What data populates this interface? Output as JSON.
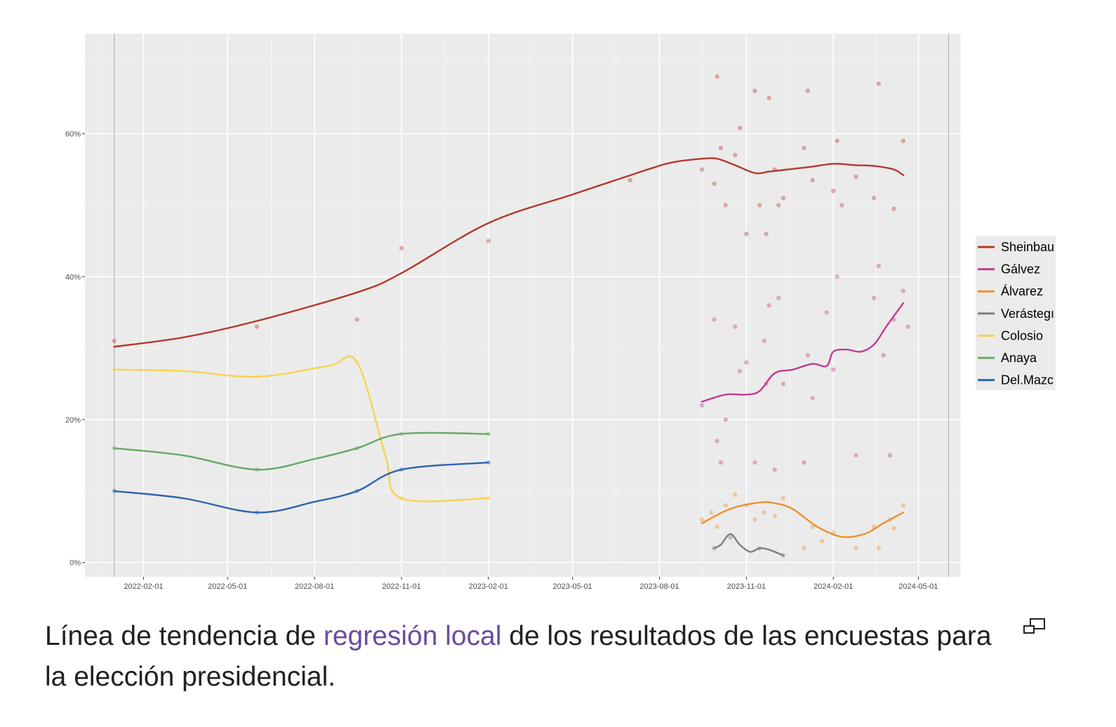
{
  "chart_data": {
    "type": "line",
    "title": "",
    "xlabel": "",
    "ylabel": "",
    "xlim": [
      "2021-12-01",
      "2024-06-15"
    ],
    "ylim": [
      -2,
      74
    ],
    "grid": true,
    "legend_position": "right",
    "x_ticks": [
      "2022-02-01",
      "2022-05-01",
      "2022-08-01",
      "2022-11-01",
      "2023-02-01",
      "2023-05-01",
      "2023-08-01",
      "2023-11-01",
      "2024-02-01",
      "2024-05-01"
    ],
    "y_ticks": [
      0,
      20,
      40,
      60
    ],
    "y_tick_labels": [
      "0%",
      "20%",
      "40%",
      "60%"
    ],
    "vlines": [
      "2022-01-01",
      "2024-06-02"
    ],
    "series": [
      {
        "name": "Sheinbaum",
        "legend_label": "Sheinbau",
        "color": "#b5382c",
        "x": [
          "2022-01-01",
          "2022-03-15",
          "2022-06-01",
          "2022-09-15",
          "2022-11-01",
          "2023-02-01",
          "2023-05-01",
          "2023-07-15",
          "2023-08-15",
          "2023-09-15",
          "2023-10-01",
          "2023-10-20",
          "2023-11-10",
          "2023-11-25",
          "2023-12-15",
          "2024-01-10",
          "2024-02-01",
          "2024-02-25",
          "2024-03-15",
          "2024-04-05",
          "2024-04-15"
        ],
        "y": [
          30.2,
          31.5,
          33.8,
          37.8,
          40.5,
          47.5,
          51.5,
          54.8,
          56,
          56.5,
          56.5,
          55.6,
          54.5,
          54.7,
          55,
          55.4,
          55.8,
          55.6,
          55.5,
          55,
          54.2
        ],
        "points": {
          "x": [
            "2022-01-01",
            "2022-06-01",
            "2022-09-15",
            "2022-11-01",
            "2023-02-01",
            "2023-07-01",
            "2023-09-15",
            "2023-09-28",
            "2023-10-01",
            "2023-10-05",
            "2023-10-10",
            "2023-10-20",
            "2023-10-25",
            "2023-11-01",
            "2023-11-10",
            "2023-11-15",
            "2023-11-22",
            "2023-11-25",
            "2023-12-01",
            "2023-12-05",
            "2023-12-10",
            "2024-01-01",
            "2024-01-05",
            "2024-01-10",
            "2024-02-01",
            "2024-02-05",
            "2024-02-10",
            "2024-02-25",
            "2024-03-15",
            "2024-03-20",
            "2024-04-05",
            "2024-04-15"
          ],
          "y": [
            31,
            33,
            34,
            44,
            45,
            53.5,
            55,
            53,
            68,
            58,
            50,
            57,
            60.8,
            46,
            66,
            50,
            46,
            65,
            55,
            50,
            51,
            58,
            66,
            53.5,
            52,
            59,
            50,
            54,
            51,
            67,
            49.5,
            59
          ]
        }
      },
      {
        "name": "Gálvez",
        "legend_label": "Gálvez",
        "color": "#c33b8f",
        "x": [
          "2023-09-15",
          "2023-10-10",
          "2023-11-01",
          "2023-11-15",
          "2023-12-01",
          "2023-12-20",
          "2024-01-10",
          "2024-01-25",
          "2024-02-01",
          "2024-02-15",
          "2024-03-01",
          "2024-03-15",
          "2024-03-28",
          "2024-04-15"
        ],
        "y": [
          22.5,
          23.5,
          23.5,
          24,
          26.5,
          27,
          27.8,
          27.5,
          29.5,
          29.8,
          29.5,
          30.5,
          33,
          36.3
        ],
        "points": {
          "x": [
            "2023-09-15",
            "2023-09-28",
            "2023-10-01",
            "2023-10-05",
            "2023-10-10",
            "2023-10-20",
            "2023-10-25",
            "2023-11-01",
            "2023-11-10",
            "2023-11-20",
            "2023-11-22",
            "2023-11-25",
            "2023-12-01",
            "2023-12-05",
            "2023-12-10",
            "2024-01-01",
            "2024-01-05",
            "2024-01-10",
            "2024-01-25",
            "2024-02-01",
            "2024-02-05",
            "2024-02-25",
            "2024-03-15",
            "2024-03-20",
            "2024-03-25",
            "2024-04-01",
            "2024-04-05",
            "2024-04-15",
            "2024-04-20"
          ],
          "y": [
            22,
            34,
            17,
            14,
            20,
            33,
            26.8,
            28,
            14,
            31,
            25,
            36,
            13,
            37,
            25,
            14,
            29,
            23,
            35,
            27,
            40,
            15,
            37,
            41.5,
            29,
            15,
            34,
            38,
            33
          ]
        }
      },
      {
        "name": "Álvarez",
        "legend_label": "Álvarez",
        "color": "#ee8f2b",
        "x": [
          "2023-09-15",
          "2023-10-15",
          "2023-11-15",
          "2023-12-01",
          "2023-12-20",
          "2024-01-15",
          "2024-02-10",
          "2024-03-05",
          "2024-03-25",
          "2024-04-15"
        ],
        "y": [
          5.5,
          7.5,
          8.4,
          8.3,
          7.5,
          5,
          3.6,
          4,
          5.5,
          7
        ],
        "points": {
          "x": [
            "2023-09-15",
            "2023-09-25",
            "2023-10-01",
            "2023-10-10",
            "2023-10-20",
            "2023-11-01",
            "2023-11-10",
            "2023-11-20",
            "2023-12-01",
            "2023-12-10",
            "2024-01-01",
            "2024-01-10",
            "2024-01-20",
            "2024-02-01",
            "2024-02-25",
            "2024-03-15",
            "2024-03-20",
            "2024-04-01",
            "2024-04-05",
            "2024-04-15"
          ],
          "y": [
            6,
            7,
            5,
            8,
            9.5,
            8,
            6,
            7,
            6.5,
            9,
            2,
            5,
            3,
            4.2,
            2,
            5,
            2,
            6,
            4.8,
            8
          ]
        }
      },
      {
        "name": "Verástegui",
        "legend_label": "Verástegı",
        "color": "#7f7f7f",
        "x": [
          "2023-09-28",
          "2023-10-05",
          "2023-10-15",
          "2023-10-25",
          "2023-11-05",
          "2023-11-15",
          "2023-11-25",
          "2023-12-10"
        ],
        "y": [
          2,
          2.5,
          4,
          2.5,
          1.5,
          2,
          1.8,
          1
        ],
        "points": {
          "x": [
            "2023-09-28",
            "2023-10-15",
            "2023-11-15",
            "2023-12-10"
          ],
          "y": [
            2,
            3.5,
            2,
            1
          ]
        }
      },
      {
        "name": "Colosio",
        "legend_label": "Colosio",
        "color": "#f6d24d",
        "x": [
          "2022-01-01",
          "2022-03-15",
          "2022-06-01",
          "2022-08-15",
          "2022-09-15",
          "2022-10-15",
          "2022-11-01",
          "2023-02-01"
        ],
        "y": [
          27,
          26.8,
          26,
          27.5,
          28,
          15,
          9,
          9
        ],
        "points": {
          "x": [
            "2022-01-01",
            "2022-06-01",
            "2022-09-15",
            "2022-11-01",
            "2023-02-01"
          ],
          "y": [
            27,
            26,
            28,
            9,
            9
          ]
        }
      },
      {
        "name": "Anaya",
        "legend_label": "Anaya",
        "color": "#66a862",
        "x": [
          "2022-01-01",
          "2022-03-15",
          "2022-06-01",
          "2022-08-01",
          "2022-09-15",
          "2022-11-01",
          "2023-02-01"
        ],
        "y": [
          16,
          15,
          13,
          14.5,
          16,
          18,
          18
        ],
        "points": {
          "x": [
            "2022-01-01",
            "2022-06-01",
            "2022-09-15",
            "2022-11-01",
            "2023-02-01"
          ],
          "y": [
            16,
            13,
            16,
            18,
            18
          ]
        }
      },
      {
        "name": "Del.Mazo",
        "legend_label": "Del.Mazc",
        "color": "#2f63b0",
        "x": [
          "2022-01-01",
          "2022-03-15",
          "2022-06-01",
          "2022-08-01",
          "2022-09-15",
          "2022-11-01",
          "2023-02-01"
        ],
        "y": [
          10,
          9,
          7,
          8.5,
          10,
          13,
          14
        ],
        "points": {
          "x": [
            "2022-01-01",
            "2022-06-01",
            "2022-09-15",
            "2022-11-01",
            "2023-02-01"
          ],
          "y": [
            10,
            7,
            10,
            13,
            14
          ]
        }
      }
    ]
  },
  "caption": {
    "text_before": "Línea de tendencia de ",
    "link_text": "regresión local",
    "text_after": " de los resultados de las encuestas para la elección presidencial."
  },
  "icons": {
    "expand": "expand-icon"
  }
}
